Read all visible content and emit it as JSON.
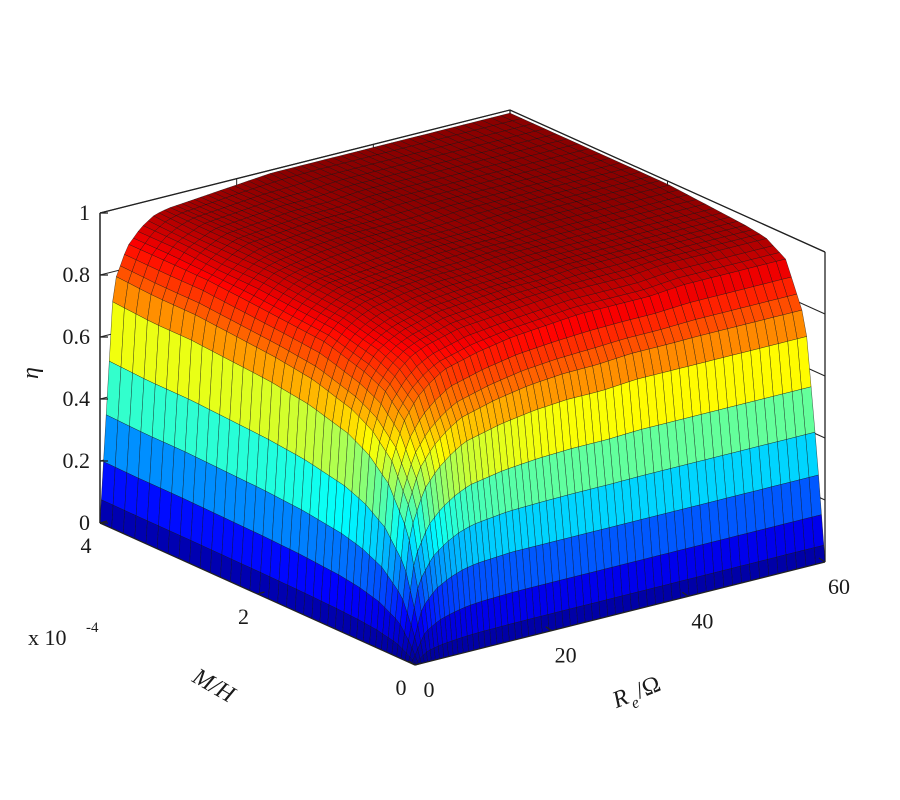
{
  "chart_data": {
    "type": "surface",
    "zlabel": "η",
    "xlabel_main": "R",
    "xlabel_sub": "e",
    "xlabel_unit": "/Ω",
    "ylabel": "M/H",
    "y_multiplier": "x 10",
    "y_multiplier_exp": "-4",
    "xlim": [
      0,
      60
    ],
    "ylim": [
      0,
      4
    ],
    "zlim": [
      0,
      1
    ],
    "x_ticks": [
      "0",
      "20",
      "40",
      "60"
    ],
    "y_ticks": [
      "0",
      "2",
      "4"
    ],
    "z_ticks": [
      "0",
      "0.2",
      "0.4",
      "0.6",
      "0.8",
      "1"
    ],
    "x_grid": [
      0,
      2,
      4,
      6,
      8,
      10,
      15,
      20,
      25,
      30,
      35,
      40,
      45,
      50,
      55,
      60
    ],
    "y_grid": [
      0,
      0.1,
      0.25,
      0.5,
      0.75,
      1,
      1.5,
      2,
      2.5,
      3,
      3.5,
      4
    ],
    "z_values": [
      [
        0.0,
        0.0,
        0.0,
        0.0,
        0.0,
        0.0,
        0.0,
        0.0,
        0.0,
        0.0,
        0.0,
        0.0,
        0.0,
        0.0,
        0.0,
        0.0
      ],
      [
        0.0,
        0.2,
        0.26,
        0.29,
        0.31,
        0.32,
        0.33,
        0.33,
        0.33,
        0.33,
        0.33,
        0.33,
        0.33,
        0.33,
        0.33,
        0.33
      ],
      [
        0.0,
        0.42,
        0.55,
        0.61,
        0.65,
        0.68,
        0.71,
        0.73,
        0.74,
        0.74,
        0.75,
        0.75,
        0.75,
        0.75,
        0.75,
        0.75
      ],
      [
        0.0,
        0.56,
        0.7,
        0.77,
        0.81,
        0.84,
        0.87,
        0.89,
        0.9,
        0.91,
        0.91,
        0.91,
        0.92,
        0.92,
        0.92,
        0.92
      ],
      [
        0.0,
        0.63,
        0.77,
        0.83,
        0.87,
        0.89,
        0.92,
        0.93,
        0.94,
        0.95,
        0.95,
        0.95,
        0.96,
        0.96,
        0.96,
        0.96
      ],
      [
        0.0,
        0.67,
        0.8,
        0.86,
        0.89,
        0.91,
        0.94,
        0.95,
        0.96,
        0.96,
        0.97,
        0.97,
        0.97,
        0.97,
        0.97,
        0.97
      ],
      [
        0.0,
        0.71,
        0.84,
        0.89,
        0.92,
        0.94,
        0.96,
        0.97,
        0.97,
        0.98,
        0.98,
        0.98,
        0.98,
        0.98,
        0.98,
        0.98
      ],
      [
        0.0,
        0.73,
        0.85,
        0.9,
        0.93,
        0.95,
        0.96,
        0.97,
        0.98,
        0.98,
        0.98,
        0.99,
        0.99,
        0.99,
        0.99,
        0.99
      ],
      [
        0.0,
        0.74,
        0.86,
        0.91,
        0.94,
        0.95,
        0.97,
        0.98,
        0.98,
        0.98,
        0.99,
        0.99,
        0.99,
        0.99,
        0.99,
        0.99
      ],
      [
        0.0,
        0.75,
        0.87,
        0.91,
        0.94,
        0.96,
        0.97,
        0.98,
        0.98,
        0.99,
        0.99,
        0.99,
        0.99,
        0.99,
        0.99,
        0.99
      ],
      [
        0.0,
        0.75,
        0.87,
        0.92,
        0.94,
        0.96,
        0.97,
        0.98,
        0.98,
        0.99,
        0.99,
        0.99,
        0.99,
        0.99,
        0.99,
        0.99
      ],
      [
        0.0,
        0.76,
        0.87,
        0.92,
        0.95,
        0.96,
        0.97,
        0.98,
        0.99,
        0.99,
        0.99,
        0.99,
        0.99,
        0.99,
        0.99,
        0.99
      ]
    ],
    "colormap": "jet",
    "colormap_stops": [
      "#00008f",
      "#0000ff",
      "#00ffff",
      "#ffff00",
      "#ff0000",
      "#800000"
    ],
    "grid": true
  }
}
